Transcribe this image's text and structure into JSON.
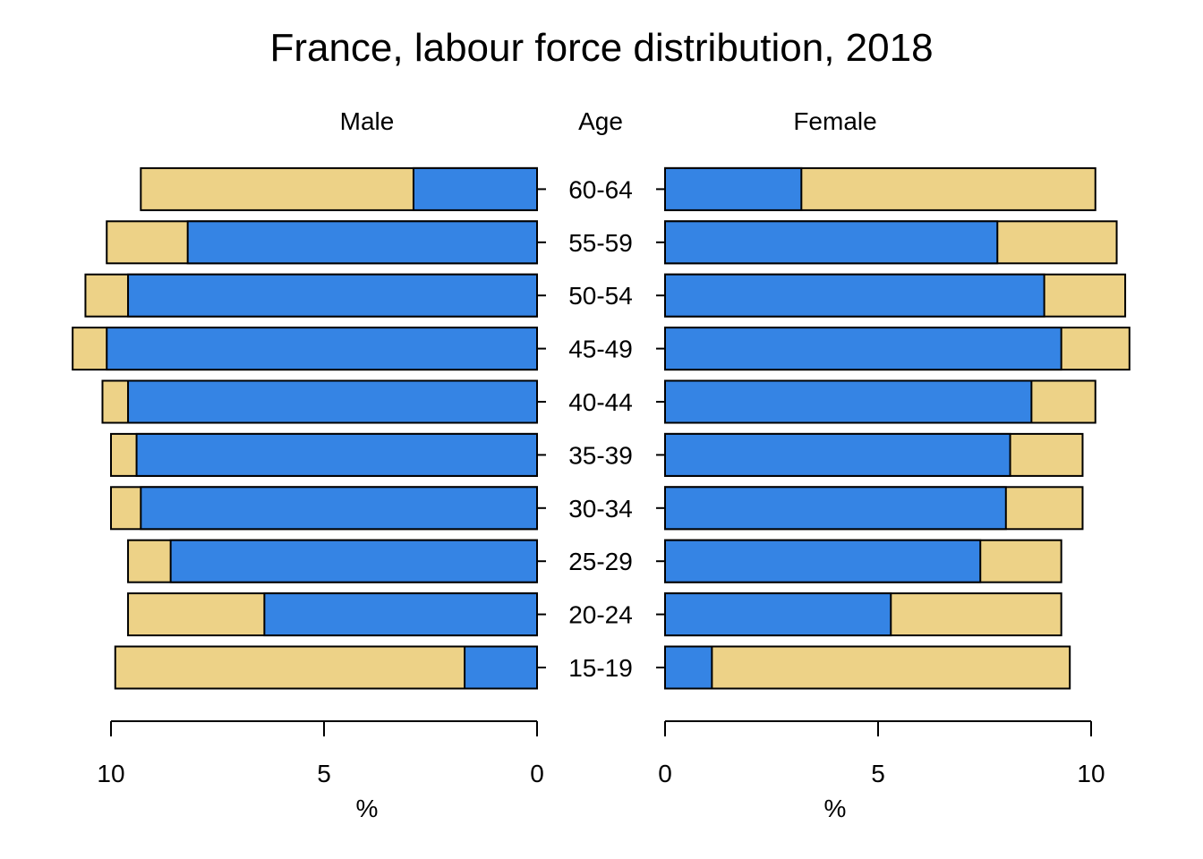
{
  "chart_data": {
    "type": "bar",
    "title": "France, labour force distribution, 2018",
    "left_panel_label": "Male",
    "center_label": "Age",
    "right_panel_label": "Female",
    "xlabel": "%",
    "xlim": [
      0,
      10
    ],
    "x_ticks": [
      "0",
      "5",
      "10"
    ],
    "categories": [
      "15-19",
      "20-24",
      "25-29",
      "30-34",
      "35-39",
      "40-44",
      "45-49",
      "50-54",
      "55-59",
      "60-64"
    ],
    "colors": {
      "in_labour_force": "#3584e4",
      "population": "#edd287",
      "edge": "#000000"
    },
    "series": [
      {
        "sex": "male",
        "total": [
          9.9,
          9.6,
          9.6,
          10.0,
          10.0,
          10.2,
          10.9,
          10.6,
          10.1,
          9.3
        ],
        "labour_force": [
          1.7,
          6.4,
          8.6,
          9.3,
          9.4,
          9.6,
          10.1,
          9.6,
          8.2,
          2.9
        ]
      },
      {
        "sex": "female",
        "total": [
          9.5,
          9.3,
          9.3,
          9.8,
          9.8,
          10.1,
          10.9,
          10.8,
          10.6,
          10.1
        ],
        "labour_force": [
          1.1,
          5.3,
          7.4,
          8.0,
          8.1,
          8.6,
          9.3,
          8.9,
          7.8,
          3.2
        ]
      }
    ]
  }
}
